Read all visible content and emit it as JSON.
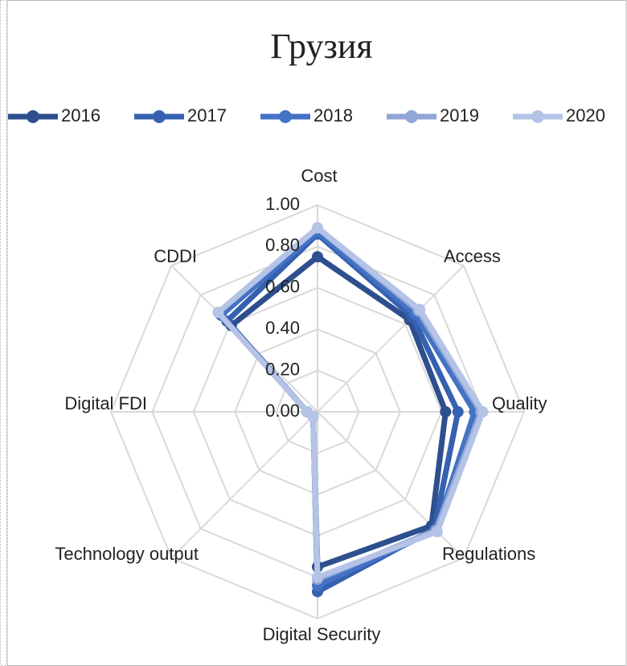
{
  "chart_data": {
    "type": "radar",
    "title": "Грузия",
    "categories": [
      "Cost",
      "Access",
      "Quality",
      "Regulations",
      "Digital Security",
      "Technology output",
      "Digital FDI",
      "CDDI"
    ],
    "series": [
      {
        "name": "2016",
        "color": "#2e4f8e",
        "values": [
          0.75,
          0.63,
          0.62,
          0.78,
          0.75,
          0.03,
          0.05,
          0.59
        ]
      },
      {
        "name": "2017",
        "color": "#3561b0",
        "values": [
          0.86,
          0.65,
          0.68,
          0.8,
          0.87,
          0.03,
          0.05,
          0.62
        ]
      },
      {
        "name": "2018",
        "color": "#4472c4",
        "values": [
          0.87,
          0.67,
          0.76,
          0.81,
          0.84,
          0.03,
          0.05,
          0.66
        ]
      },
      {
        "name": "2019",
        "color": "#8fa6d6",
        "values": [
          0.89,
          0.69,
          0.79,
          0.81,
          0.81,
          0.03,
          0.05,
          0.68
        ]
      },
      {
        "name": "2020",
        "color": "#b4c3e6",
        "values": [
          0.89,
          0.7,
          0.8,
          0.82,
          0.8,
          0.03,
          0.05,
          0.68
        ]
      }
    ],
    "ylim": [
      0,
      1
    ],
    "yticks": [
      {
        "value": 0,
        "label": "0.00"
      },
      {
        "value": 0.2,
        "label": "0.20"
      },
      {
        "value": 0.4,
        "label": "0.40"
      },
      {
        "value": 0.6,
        "label": "0.60"
      },
      {
        "value": 0.8,
        "label": "0.80"
      },
      {
        "value": 1,
        "label": "1.00"
      }
    ],
    "grid": true,
    "legend": "top"
  }
}
